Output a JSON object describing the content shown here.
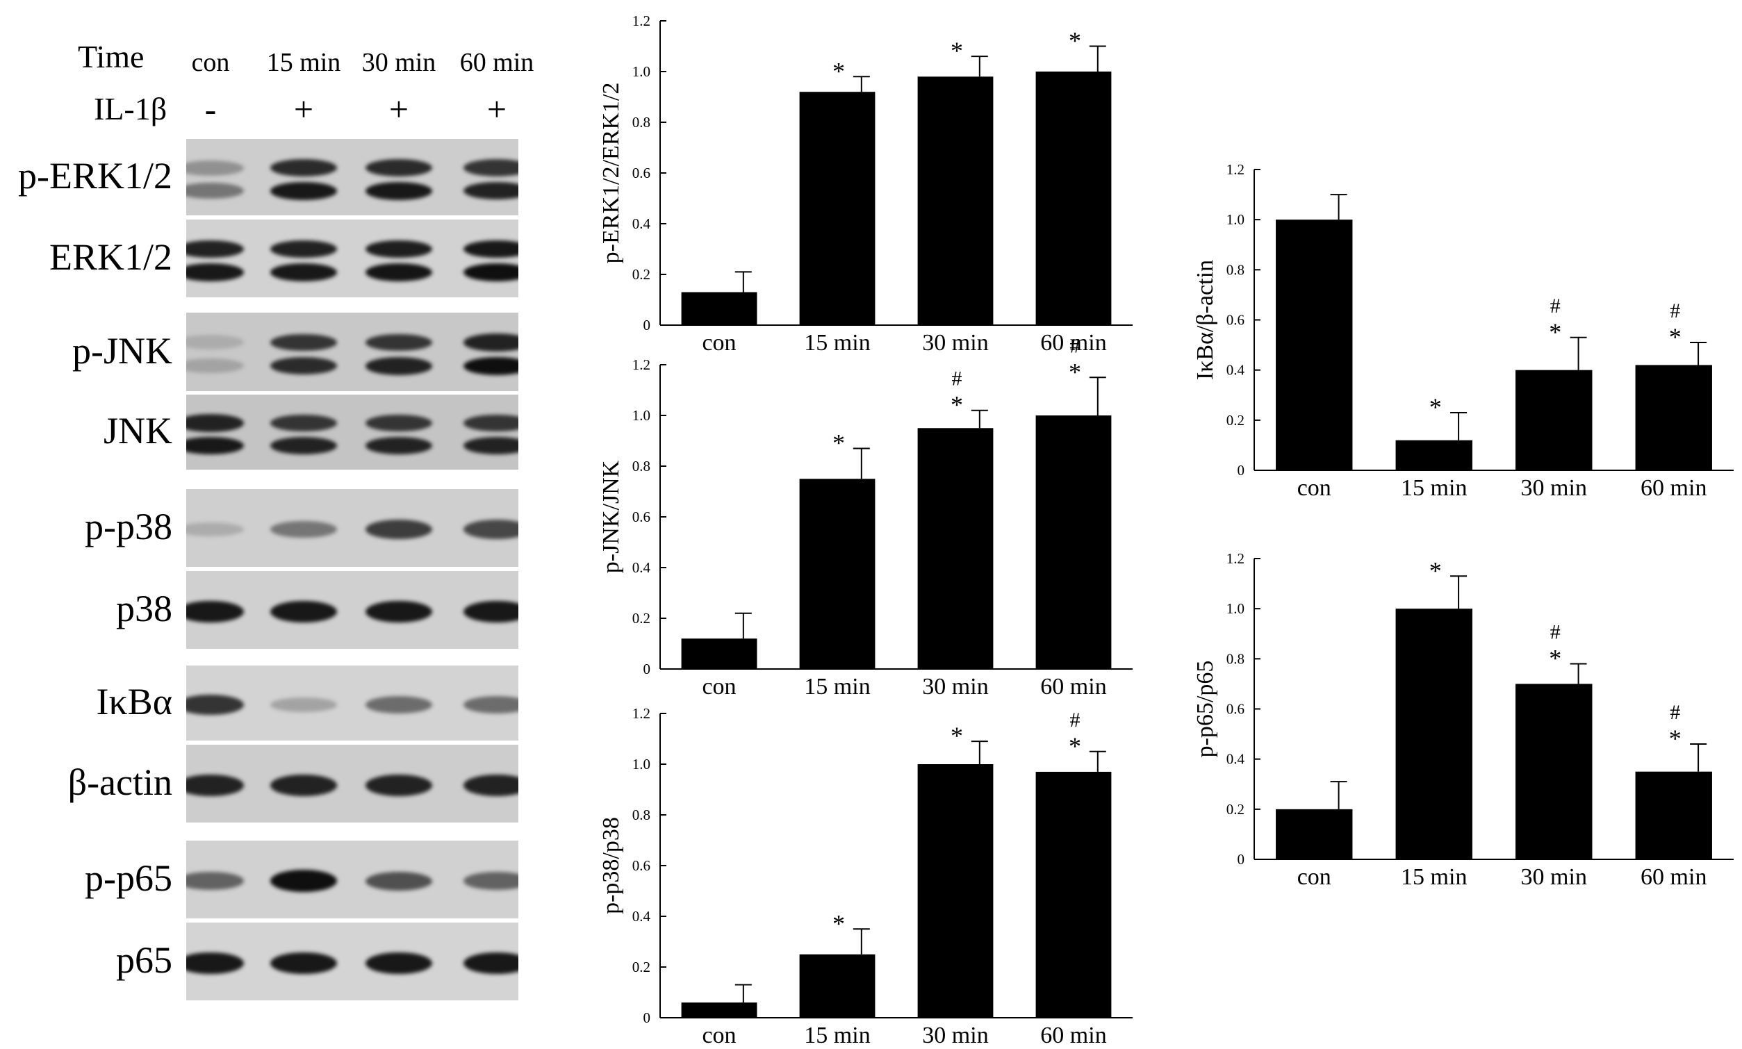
{
  "blot_panel": {
    "time_label": "Time",
    "lanes": [
      "con",
      "15 min",
      "30 min",
      "60  min"
    ],
    "treatment_label": "IL-1β",
    "treatments": [
      "-",
      "+",
      "+",
      "+"
    ],
    "rows": [
      {
        "label": "p-ERK1/2",
        "bands": [
          [
            0.3,
            0.45
          ],
          [
            0.85,
            0.95
          ],
          [
            0.85,
            0.95
          ],
          [
            0.8,
            0.9
          ]
        ],
        "double": true,
        "bg": "#cdcdcd"
      },
      {
        "label": "ERK1/2",
        "bands": [
          [
            0.9,
            0.95
          ],
          [
            0.9,
            0.95
          ],
          [
            0.92,
            0.97
          ],
          [
            0.95,
            1.0
          ]
        ],
        "double": true,
        "bg": "#d2d2d2"
      },
      {
        "label": "p-JNK",
        "bands": [
          [
            0.15,
            0.2
          ],
          [
            0.8,
            0.85
          ],
          [
            0.8,
            0.9
          ],
          [
            0.9,
            1.0
          ]
        ],
        "double": true,
        "bg": "#c8c8c8"
      },
      {
        "label": "JNK",
        "bands": [
          [
            0.9,
            0.95
          ],
          [
            0.8,
            0.9
          ],
          [
            0.8,
            0.9
          ],
          [
            0.8,
            0.9
          ]
        ],
        "double": true,
        "bg": "#c4c4c4"
      },
      {
        "label": "p-p38",
        "bands": [
          [
            0.15
          ],
          [
            0.45
          ],
          [
            0.75
          ],
          [
            0.7
          ]
        ],
        "double": false,
        "bg": "#cfcfcf"
      },
      {
        "label": "p38",
        "bands": [
          [
            0.95
          ],
          [
            0.95
          ],
          [
            0.95
          ],
          [
            0.95
          ]
        ],
        "double": false,
        "bg": "#d0d0d0"
      },
      {
        "label": "IκBα",
        "bands": [
          [
            0.8
          ],
          [
            0.2
          ],
          [
            0.5
          ],
          [
            0.5
          ]
        ],
        "double": false,
        "bg": "#d3d3d3"
      },
      {
        "label": "β-actin",
        "bands": [
          [
            0.9
          ],
          [
            0.9
          ],
          [
            0.9
          ],
          [
            0.9
          ]
        ],
        "double": false,
        "bg": "#cdcdcd"
      },
      {
        "label": "p-p65",
        "bands": [
          [
            0.55
          ],
          [
            1.0
          ],
          [
            0.65
          ],
          [
            0.55
          ]
        ],
        "double": false,
        "bg": "#d1d1d1"
      },
      {
        "label": "p65",
        "bands": [
          [
            0.95
          ],
          [
            0.95
          ],
          [
            0.95
          ],
          [
            0.95
          ]
        ],
        "double": false,
        "bg": "#d4d4d4"
      }
    ]
  },
  "chart_data": [
    {
      "type": "bar",
      "ylabel": "p-ERK1/2/ERK1/2",
      "categories": [
        "con",
        "15 min",
        "30 min",
        "60 min"
      ],
      "values": [
        0.13,
        0.92,
        0.98,
        1.0
      ],
      "errors": [
        0.08,
        0.06,
        0.08,
        0.1
      ],
      "marks": [
        [],
        [
          "*"
        ],
        [
          "*"
        ],
        [
          "*"
        ]
      ],
      "ylim": [
        0,
        1.2
      ],
      "yticks": [
        "0",
        "0.2",
        "0.4",
        "0.6",
        "0.8",
        "1.0",
        "1.2"
      ]
    },
    {
      "type": "bar",
      "ylabel": "p-JNK/JNK",
      "categories": [
        "con",
        "15 min",
        "30 min",
        "60 min"
      ],
      "values": [
        0.12,
        0.75,
        0.95,
        1.0
      ],
      "errors": [
        0.1,
        0.12,
        0.07,
        0.15
      ],
      "marks": [
        [],
        [
          "*"
        ],
        [
          "#",
          "*"
        ],
        [
          "#",
          "*"
        ]
      ],
      "ylim": [
        0,
        1.2
      ],
      "yticks": [
        "0",
        "0.2",
        "0.4",
        "0.6",
        "0.8",
        "1.0",
        "1.2"
      ]
    },
    {
      "type": "bar",
      "ylabel": "p-p38/p38",
      "categories": [
        "con",
        "15 min",
        "30 min",
        "60 min"
      ],
      "values": [
        0.06,
        0.25,
        1.0,
        0.97
      ],
      "errors": [
        0.07,
        0.1,
        0.09,
        0.08
      ],
      "marks": [
        [],
        [
          "*"
        ],
        [
          "*"
        ],
        [
          "#",
          "*"
        ]
      ],
      "ylim": [
        0,
        1.2
      ],
      "yticks": [
        "0",
        "0.2",
        "0.4",
        "0.6",
        "0.8",
        "1.0",
        "1.2"
      ]
    },
    {
      "type": "bar",
      "ylabel": "IκBα/β-actin",
      "categories": [
        "con",
        "15 min",
        "30 min",
        "60 min"
      ],
      "values": [
        1.0,
        0.12,
        0.4,
        0.42
      ],
      "errors": [
        0.1,
        0.11,
        0.13,
        0.09
      ],
      "marks": [
        [],
        [
          "*"
        ],
        [
          "#",
          "*"
        ],
        [
          "#",
          "*"
        ]
      ],
      "ylim": [
        0,
        1.2
      ],
      "yticks": [
        "0",
        "0.2",
        "0.4",
        "0.6",
        "0.8",
        "1.0",
        "1.2"
      ]
    },
    {
      "type": "bar",
      "ylabel": "p-p65/p65",
      "categories": [
        "con",
        "15 min",
        "30 min",
        "60 min"
      ],
      "values": [
        0.2,
        1.0,
        0.7,
        0.35
      ],
      "errors": [
        0.11,
        0.13,
        0.08,
        0.11
      ],
      "marks": [
        [],
        [
          "*"
        ],
        [
          "#",
          "*"
        ],
        [
          "#",
          "*"
        ]
      ],
      "ylim": [
        0,
        1.2
      ],
      "yticks": [
        "0",
        "0.2",
        "0.4",
        "0.6",
        "0.8",
        "1.0",
        "1.2"
      ]
    }
  ]
}
